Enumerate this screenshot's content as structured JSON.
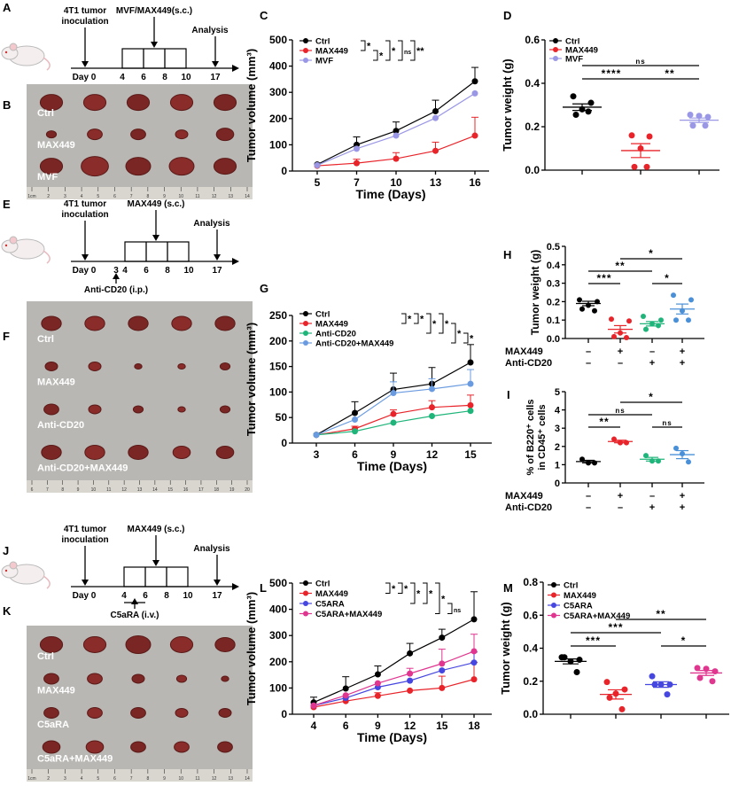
{
  "panel_letters": [
    "A",
    "B",
    "C",
    "D",
    "E",
    "F",
    "G",
    "H",
    "I",
    "J",
    "K",
    "L",
    "M"
  ],
  "colors": {
    "Ctrl": "#000000",
    "MAX449": "#e8242a",
    "MVF": "#9a97e6",
    "Anti-CD20": "#1fb57a",
    "Anti-CD20+MAX449": "#6a9be0",
    "C5ARA": "#4646e0",
    "C5ARA+MAX449": "#e0368f"
  },
  "timelines": {
    "A": {
      "top_labels": [
        "4T1 tumor\ninoculation",
        "MVF/MAX449(s.c.)",
        "Analysis"
      ],
      "ticks": [
        "Day 0",
        "4",
        "6",
        "8",
        "10",
        "17"
      ],
      "bottom_label": "",
      "icon": "mouse-icon"
    },
    "E": {
      "top_labels": [
        "4T1 tumor\ninoculation",
        "MAX449 (s.c.)",
        "Analysis"
      ],
      "ticks": [
        "Day 0",
        "3",
        "4",
        "6",
        "8",
        "10",
        "17"
      ],
      "bottom_label": "Anti-CD20 (i.p.)",
      "icon": "mouse-icon"
    },
    "J": {
      "top_labels": [
        "4T1 tumor\ninoculation",
        "MAX449 (s.c.)",
        "Analysis"
      ],
      "ticks": [
        "Day 0",
        "4",
        "6",
        "8",
        "10",
        "17"
      ],
      "bottom_label": "C5aRA (i.v.)",
      "icon": "mouse-icon"
    }
  },
  "photos": {
    "B": {
      "rows": [
        "Ctrl",
        "MAX449",
        "MVF"
      ],
      "ruler": [
        "1cm",
        "2",
        "3",
        "4",
        "5",
        "6",
        "7",
        "8",
        "9",
        "10",
        "11",
        "12",
        "13",
        "14"
      ]
    },
    "F": {
      "rows": [
        "Ctrl",
        "MAX449",
        "Anti-CD20",
        "Anti-CD20+MAX449"
      ],
      "ruler": [
        "6",
        "7",
        "8",
        "9",
        "10",
        "11",
        "12",
        "13",
        "14",
        "15",
        "16",
        "17",
        "18",
        "19",
        "20"
      ]
    },
    "K": {
      "rows": [
        "Ctrl",
        "MAX449",
        "C5aRA",
        "C5aRA+MAX449"
      ],
      "ruler": [
        "1cm",
        "2",
        "3",
        "4",
        "5",
        "6",
        "7",
        "8",
        "9",
        "10",
        "11",
        "12",
        "13",
        "14"
      ]
    }
  },
  "chart_data": [
    {
      "panel": "C",
      "type": "line",
      "xlabel": "Time (Days)",
      "ylabel": "Tumor volume (mm³)",
      "x": [
        "5",
        "7",
        "10",
        "13",
        "16"
      ],
      "yticks": [
        "0",
        "100",
        "200",
        "300",
        "400",
        "500"
      ],
      "ylim": [
        0,
        500
      ],
      "series": [
        {
          "name": "Ctrl",
          "values": [
            25,
            100,
            153,
            228,
            342
          ],
          "err": [
            0,
            30,
            34,
            42,
            53
          ]
        },
        {
          "name": "MAX449",
          "values": [
            20,
            30,
            47,
            77,
            135
          ],
          "err": [
            0,
            15,
            23,
            33,
            70
          ]
        },
        {
          "name": "MVF",
          "values": [
            22,
            85,
            135,
            202,
            296
          ],
          "err": [
            0,
            0,
            0,
            0,
            0
          ]
        }
      ],
      "sig": [
        [
          0,
          1,
          "*"
        ],
        [
          1,
          2,
          "*"
        ],
        [
          0,
          2,
          "*"
        ],
        [
          0,
          2,
          "ns"
        ],
        [
          0,
          2,
          "**"
        ]
      ]
    },
    {
      "panel": "D",
      "type": "scatter",
      "ylabel": "Tumor  weight (g)",
      "yticks": [
        "0.0",
        "0.2",
        "0.4",
        "0.6"
      ],
      "ylim": [
        0,
        0.6
      ],
      "groups": [
        {
          "name": "Ctrl",
          "points": [
            0.34,
            0.31,
            0.28,
            0.255,
            0.27
          ],
          "mean": 0.29,
          "sem": 0.015
        },
        {
          "name": "MAX449",
          "points": [
            0.16,
            0.155,
            0.1,
            0.015,
            0.015
          ],
          "mean": 0.09,
          "sem": 0.032
        },
        {
          "name": "MVF",
          "points": [
            0.255,
            0.245,
            0.25,
            0.205,
            0.205
          ],
          "mean": 0.23,
          "sem": 0.01
        }
      ],
      "sig": [
        [
          0,
          1,
          "****"
        ],
        [
          1,
          2,
          "**"
        ],
        [
          0,
          2,
          "ns"
        ]
      ],
      "legend": true
    },
    {
      "panel": "G",
      "type": "line",
      "xlabel": "Time (Days)",
      "ylabel": "Tumor volume (mm³)",
      "x": [
        "3",
        "6",
        "9",
        "12",
        "15"
      ],
      "yticks": [
        "0",
        "50",
        "100",
        "150",
        "200",
        "250"
      ],
      "ylim": [
        0,
        250
      ],
      "series": [
        {
          "name": "Ctrl",
          "values": [
            16,
            59,
            105,
            116,
            158
          ],
          "err": [
            0,
            22,
            32,
            32,
            35
          ]
        },
        {
          "name": "MAX449",
          "values": [
            16,
            28,
            57,
            70,
            74
          ],
          "err": [
            0,
            5,
            8,
            13,
            20
          ]
        },
        {
          "name": "Anti-CD20",
          "values": [
            16,
            23,
            40,
            53,
            63
          ],
          "err": [
            0,
            0,
            0,
            0,
            0
          ]
        },
        {
          "name": "Anti-CD20+MAX449",
          "values": [
            16,
            46,
            98,
            106,
            116
          ],
          "err": [
            0,
            0,
            22,
            20,
            28
          ]
        }
      ],
      "sig": [
        [
          0,
          1,
          "*"
        ],
        [
          0,
          1,
          "*"
        ],
        [
          0,
          2,
          "*"
        ],
        [
          0,
          2,
          "*"
        ],
        [
          1,
          3,
          "*"
        ],
        [
          2,
          3,
          "*"
        ]
      ]
    },
    {
      "panel": "H",
      "type": "scatter",
      "ylabel": "Tumor  weight (g)",
      "yticks": [
        "0.0",
        "0.1",
        "0.2",
        "0.3",
        "0.4",
        "0.5"
      ],
      "ylim": [
        0,
        0.5
      ],
      "groups": [
        {
          "name": "Ctrl",
          "color": "#000000",
          "points": [
            0.21,
            0.2,
            0.18,
            0.16,
            0.15
          ],
          "mean": 0.19,
          "sem": 0.012
        },
        {
          "name": "MAX449",
          "color": "#e8242a",
          "points": [
            0.105,
            0.095,
            0.03,
            0.01,
            0.005
          ],
          "mean": 0.05,
          "sem": 0.02
        },
        {
          "name": "Anti-CD20",
          "color": "#1fb57a",
          "points": [
            0.12,
            0.1,
            0.08,
            0.05,
            0.07
          ],
          "mean": 0.08,
          "sem": 0.012
        },
        {
          "name": "Anti-CD20+MAX449",
          "color": "#4a90d9",
          "points": [
            0.235,
            0.21,
            0.15,
            0.1,
            0.1
          ],
          "mean": 0.16,
          "sem": 0.027
        }
      ],
      "sig": [
        [
          0,
          1,
          "***"
        ],
        [
          2,
          3,
          "*"
        ],
        [
          0,
          2,
          "**"
        ],
        [
          1,
          3,
          "*"
        ]
      ],
      "conditions": [
        {
          "label": "MAX449",
          "signs": [
            "–",
            "+",
            "–",
            "+"
          ]
        },
        {
          "label": "Anti-CD20",
          "signs": [
            "–",
            "–",
            "+",
            "+"
          ]
        }
      ]
    },
    {
      "panel": "I",
      "type": "scatter",
      "ylabel": "% of B220⁺ cells\nin CD45⁺ cells",
      "yticks": [
        "0",
        "1",
        "2",
        "3",
        "4",
        "5"
      ],
      "ylim": [
        0,
        5
      ],
      "groups": [
        {
          "name": "Ctrl",
          "color": "#000000",
          "points": [
            1.3,
            1.1,
            1.1
          ],
          "mean": 1.17,
          "sem": 0.07
        },
        {
          "name": "MAX449",
          "color": "#e8242a",
          "points": [
            2.4,
            2.2,
            2.2
          ],
          "mean": 2.27,
          "sem": 0.07
        },
        {
          "name": "Anti-CD20",
          "color": "#1fb57a",
          "points": [
            1.5,
            1.2,
            1.2
          ],
          "mean": 1.3,
          "sem": 0.1
        },
        {
          "name": "Anti-CD20+MAX449",
          "color": "#4a90d9",
          "points": [
            1.9,
            1.6,
            1.15
          ],
          "mean": 1.55,
          "sem": 0.22
        }
      ],
      "sig": [
        [
          0,
          1,
          "**"
        ],
        [
          2,
          3,
          "ns"
        ],
        [
          0,
          2,
          "ns"
        ],
        [
          1,
          3,
          "*"
        ]
      ],
      "conditions": [
        {
          "label": "MAX449",
          "signs": [
            "–",
            "+",
            "–",
            "+"
          ]
        },
        {
          "label": "Anti-CD20",
          "signs": [
            "–",
            "–",
            "+",
            "+"
          ]
        }
      ]
    },
    {
      "panel": "L",
      "type": "line",
      "xlabel": "Time (Days)",
      "ylabel": "Tumor volume (mm³)",
      "x": [
        "4",
        "6",
        "9",
        "12",
        "15",
        "18"
      ],
      "yticks": [
        "0",
        "100",
        "200",
        "300",
        "400",
        "500"
      ],
      "ylim": [
        0,
        500
      ],
      "series": [
        {
          "name": "Ctrl",
          "values": [
            45,
            98,
            152,
            232,
            292,
            362
          ],
          "err": [
            20,
            45,
            32,
            38,
            32,
            105
          ]
        },
        {
          "name": "MAX449",
          "values": [
            27,
            50,
            70,
            90,
            100,
            133
          ],
          "err": [
            0,
            0,
            12,
            0,
            45,
            65
          ]
        },
        {
          "name": "C5ARA",
          "values": [
            33,
            62,
            103,
            128,
            167,
            197
          ],
          "err": [
            0,
            0,
            0,
            0,
            0,
            40
          ]
        },
        {
          "name": "C5ARA+MAX449",
          "values": [
            33,
            72,
            118,
            155,
            193,
            240
          ],
          "err": [
            0,
            0,
            0,
            20,
            55,
            65
          ]
        }
      ],
      "sig": [
        [
          0,
          1,
          "*"
        ],
        [
          0,
          1,
          "*"
        ],
        [
          0,
          2,
          "*"
        ],
        [
          0,
          2,
          "*"
        ],
        [
          0,
          3,
          "*"
        ],
        [
          2,
          3,
          "ns"
        ]
      ]
    },
    {
      "panel": "M",
      "type": "scatter",
      "ylabel": "Tumor  weight (g)",
      "yticks": [
        "0.0",
        "0.2",
        "0.4",
        "0.6",
        "0.8"
      ],
      "ylim": [
        0,
        0.8
      ],
      "groups": [
        {
          "name": "Ctrl",
          "points": [
            0.345,
            0.33,
            0.32,
            0.345,
            0.255
          ],
          "mean": 0.32,
          "sem": 0.015
        },
        {
          "name": "MAX449",
          "points": [
            0.195,
            0.15,
            0.125,
            0.1,
            0.03
          ],
          "mean": 0.12,
          "sem": 0.028
        },
        {
          "name": "C5ARA",
          "points": [
            0.23,
            0.18,
            0.18,
            0.18,
            0.12
          ],
          "mean": 0.18,
          "sem": 0.017
        },
        {
          "name": "C5ARA+MAX449",
          "points": [
            0.28,
            0.26,
            0.275,
            0.22,
            0.2
          ],
          "mean": 0.25,
          "sem": 0.015
        }
      ],
      "sig": [
        [
          0,
          1,
          "***"
        ],
        [
          2,
          3,
          "*"
        ],
        [
          0,
          2,
          "***"
        ],
        [
          1,
          3,
          "**"
        ]
      ],
      "legend": true
    }
  ]
}
